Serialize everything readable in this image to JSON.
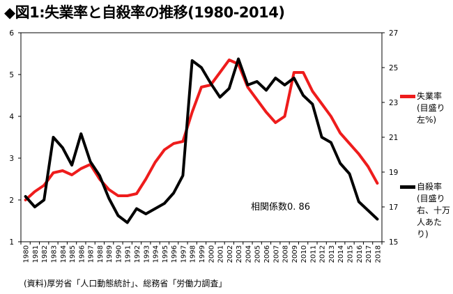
{
  "title": "◆図1:失業率と自殺率の推移(1980-2014)",
  "source": "(資料)厚労省「人口動態統計」、総務省「労働力調査」",
  "annotation": "相関係数0. 86",
  "colors": {
    "unemployment": "#ee1c1c",
    "suicide": "#000000"
  },
  "legend": [
    {
      "key": "unemployment",
      "label": "失業率\n(目盛り\n左%)"
    },
    {
      "key": "suicide",
      "label": "自殺率\n(目盛り\n右、十万\n人あた\nり)"
    }
  ],
  "chart_data": {
    "type": "line",
    "x": [
      "1980",
      "1981",
      "1982",
      "1983",
      "1984",
      "1985",
      "1986",
      "1987",
      "1988",
      "1989",
      "1990",
      "1991",
      "1992",
      "1993",
      "1994",
      "1995",
      "1996",
      "1997",
      "1998",
      "1999",
      "2000",
      "2001",
      "2002",
      "2003",
      "2004",
      "2005",
      "2006",
      "2007",
      "2008",
      "2009",
      "2010",
      "2011",
      "2012",
      "2013",
      "2014",
      "2015",
      "2016",
      "2017",
      "2018"
    ],
    "y_left_ticks": [
      "1",
      "2",
      "3",
      "4",
      "5",
      "6"
    ],
    "y_right_ticks": [
      "15",
      "17",
      "19",
      "21",
      "23",
      "25",
      "27"
    ],
    "ylim_left": [
      1,
      6
    ],
    "ylim_right": [
      15,
      27
    ],
    "grid": false,
    "series": [
      {
        "key": "unemployment",
        "axis": "left",
        "values": [
          2.0,
          2.2,
          2.35,
          2.65,
          2.7,
          2.6,
          2.75,
          2.85,
          2.5,
          2.25,
          2.1,
          2.1,
          2.15,
          2.5,
          2.9,
          3.2,
          3.35,
          3.4,
          4.1,
          4.7,
          4.75,
          5.05,
          5.35,
          5.25,
          4.7,
          4.4,
          4.1,
          3.85,
          4.0,
          5.05,
          5.05,
          4.6,
          4.3,
          4.0,
          3.6,
          3.35,
          3.1,
          2.8,
          2.4
        ]
      },
      {
        "key": "suicide",
        "axis": "right",
        "values": [
          17.6,
          17.0,
          17.4,
          21.0,
          20.4,
          19.4,
          21.2,
          19.6,
          18.8,
          17.5,
          16.5,
          16.1,
          16.9,
          16.6,
          16.9,
          17.2,
          17.8,
          18.8,
          25.4,
          25.0,
          24.1,
          23.3,
          23.8,
          25.5,
          24.0,
          24.2,
          23.7,
          24.4,
          24.0,
          24.4,
          23.4,
          22.9,
          21.0,
          20.7,
          19.5,
          18.9,
          17.3,
          16.8,
          16.3
        ]
      }
    ]
  }
}
